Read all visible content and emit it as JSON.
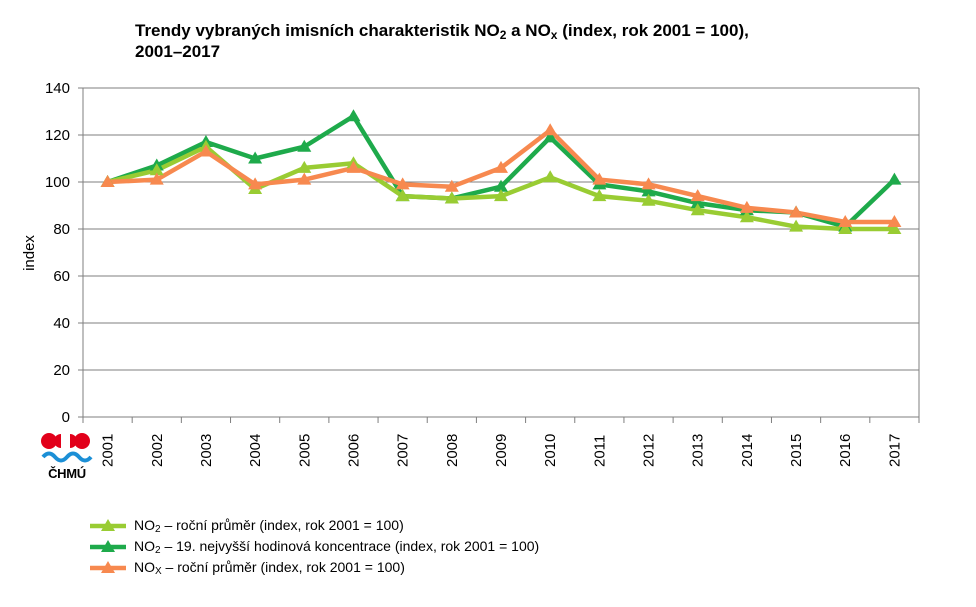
{
  "title": {
    "line1_a": "Trendy vybraných imisních charakteristik NO",
    "line1_sub1": "2",
    "line1_b": " a NO",
    "line1_sub2": "x",
    "line1_c": " (index, rok 2001 = 100),",
    "line2": "2001–2017"
  },
  "logo": {
    "text": "ČHMÚ"
  },
  "colors": {
    "no2_annual": "#99CC33",
    "no2_hourly": "#1EAA4B",
    "nox_annual": "#F7894F",
    "grid": "#7f7f7f"
  },
  "chart_data": {
    "type": "line",
    "ylabel": "index",
    "xlabel": "",
    "ylim": [
      0,
      140
    ],
    "yticks": [
      0,
      20,
      40,
      60,
      80,
      100,
      120,
      140
    ],
    "grid": true,
    "legend_position": "bottom",
    "categories": [
      "2001",
      "2002",
      "2003",
      "2004",
      "2005",
      "2006",
      "2007",
      "2008",
      "2009",
      "2010",
      "2011",
      "2012",
      "2013",
      "2014",
      "2015",
      "2016",
      "2017"
    ],
    "series": [
      {
        "name": "NO2 – roční průměr (index, rok 2001 = 100)",
        "label_prefix": "NO",
        "label_sub": "2",
        "label_suffix": " – roční průměr (index, rok 2001 = 100)",
        "color": "#99CC33",
        "values": [
          100,
          105,
          115,
          97,
          106,
          108,
          94,
          93,
          94,
          102,
          94,
          92,
          88,
          85,
          81,
          80,
          80
        ]
      },
      {
        "name": "NO2 – 19. nejvyšší hodinová koncentrace (index, rok 2001 = 100)",
        "label_prefix": "NO",
        "label_sub": "2",
        "label_suffix": " – 19. nejvyšší hodinová koncentrace (index, rok 2001 = 100)",
        "color": "#1EAA4B",
        "values": [
          100,
          107,
          117,
          110,
          115,
          128,
          94,
          93,
          98,
          119,
          99,
          96,
          91,
          88,
          87,
          81,
          101
        ]
      },
      {
        "name": "NOX – roční průměr (index, rok 2001 = 100)",
        "label_prefix": "NO",
        "label_sub": "X",
        "label_suffix": " – roční průměr (index, rok 2001 = 100)",
        "color": "#F7894F",
        "values": [
          100,
          101,
          113,
          99,
          101,
          106,
          99,
          98,
          106,
          122,
          101,
          99,
          94,
          89,
          87,
          83,
          83
        ]
      }
    ]
  }
}
